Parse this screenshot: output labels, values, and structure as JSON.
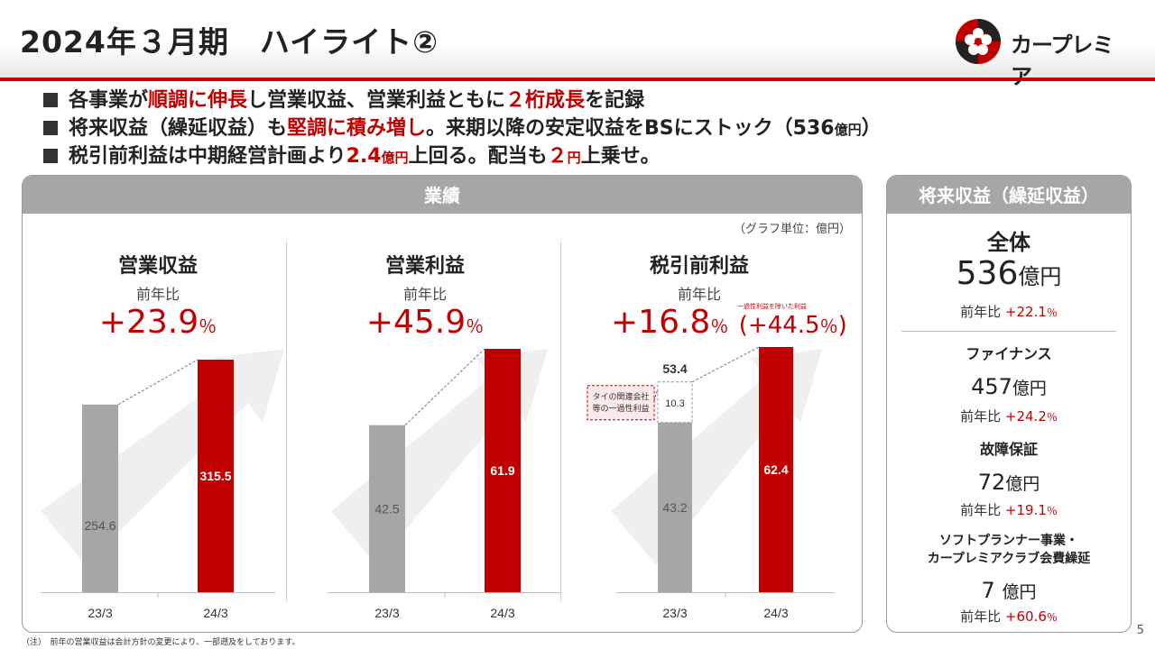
{
  "header": {
    "title": "2024年３月期　ハイライト②",
    "logo_text": "カープレミア",
    "logo_icon": "flower-seal-icon",
    "accent_color": "#c00000"
  },
  "bullets": [
    {
      "parts": [
        {
          "t": "各事業が",
          "red": false
        },
        {
          "t": "順調に伸長",
          "red": true
        },
        {
          "t": "し営業収益、営業利益ともに",
          "red": false
        },
        {
          "t": "２桁成長",
          "red": true
        },
        {
          "t": "を記録",
          "red": false
        }
      ]
    },
    {
      "parts": [
        {
          "t": "将来収益（繰延収益）も",
          "red": false
        },
        {
          "t": "堅調に積み増し",
          "red": true
        },
        {
          "t": "。来期以降の安定収益をBSにストック（536",
          "red": false
        },
        {
          "t": "億円",
          "red": false,
          "small": true
        },
        {
          "t": "）",
          "red": false
        }
      ]
    },
    {
      "parts": [
        {
          "t": "税引前利益は中期経営計画より",
          "red": false
        },
        {
          "t": "2.4",
          "red": true
        },
        {
          "t": "億円",
          "red": true,
          "small": true
        },
        {
          "t": "上回る。配当も",
          "red": false
        },
        {
          "t": "２",
          "red": true
        },
        {
          "t": "円",
          "red": true,
          "small": true
        },
        {
          "t": "上乗せ。",
          "red": false
        }
      ]
    }
  ],
  "performance": {
    "title": "業績",
    "unit_note": "（グラフ単位：億円）",
    "columns": [
      {
        "title": "営業収益",
        "sub": "前年比",
        "growth": "+23.9",
        "pct": "％"
      },
      {
        "title": "営業利益",
        "sub": "前年比",
        "growth": "+45.9",
        "pct": "％"
      },
      {
        "title": "税引前利益",
        "sub": "前年比",
        "growth": "+16.8",
        "pct": "％",
        "alt_growth": "(+44.5",
        "alt_pct": "％",
        "alt_close": ")",
        "alt_note": "一過性利益を除いた利益"
      }
    ]
  },
  "chart_data": [
    {
      "type": "bar",
      "title": "営業収益",
      "categories": [
        "23/3",
        "24/3"
      ],
      "values": [
        254.6,
        315.5
      ],
      "value_labels": [
        "254.6",
        "315.5"
      ],
      "ylim": [
        0,
        330
      ]
    },
    {
      "type": "bar",
      "title": "営業利益",
      "categories": [
        "23/3",
        "24/3"
      ],
      "values": [
        42.5,
        61.9
      ],
      "value_labels": [
        "42.5",
        "61.9"
      ],
      "ylim": [
        0,
        66
      ]
    },
    {
      "type": "bar",
      "title": "税引前利益",
      "categories": [
        "23/3",
        "24/3"
      ],
      "values": [
        43.2,
        62.4
      ],
      "value_labels": [
        "43.2",
        "62.4"
      ],
      "stack_extra": 10.3,
      "stack_extra_label": "10.3",
      "stack_total_label": "53.4",
      "callout": [
        "タイの関連会社",
        "等の一過性利益"
      ],
      "ylim": [
        0,
        66
      ]
    }
  ],
  "future": {
    "title": "将来収益（繰延収益）",
    "total_label": "全体",
    "total_value": "536",
    "total_unit": "億円",
    "total_yoy_label": "前年比",
    "total_yoy": "+22.1",
    "segments": [
      {
        "name_lines": [
          "ファイナンス"
        ],
        "value": "457",
        "unit": "億円",
        "yoy_label": "前年比",
        "yoy": "+24.2"
      },
      {
        "name_lines": [
          "故障保証"
        ],
        "value": "72",
        "unit": "億円",
        "yoy_label": "前年比",
        "yoy": "+19.1"
      },
      {
        "name_lines": [
          "ソフトプランナー事業・",
          "カープレミアクラブ会費繰延"
        ],
        "value": "7 ",
        "unit": "億円",
        "yoy_label": "前年比",
        "yoy": "+60.6"
      }
    ],
    "pct_sign": "％"
  },
  "page_number": "5",
  "footnote": "（注）　前年の営業収益は会計方針の変更により、一部遡及をしております。"
}
